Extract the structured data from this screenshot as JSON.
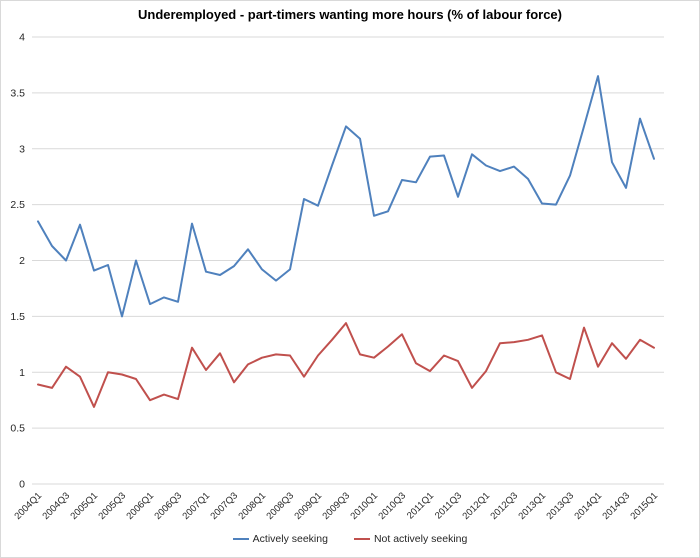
{
  "title": "Underemployed - part-timers wanting more hours (% of labour force)",
  "chart_data": {
    "type": "line",
    "title": "Underemployed - part-timers wanting more hours (% of labour force)",
    "xlabel": "",
    "ylabel": "",
    "ylim": [
      0,
      4
    ],
    "y_tick_step": 0.5,
    "y_tick_labels": [
      "0",
      "0.5",
      "1",
      "1.5",
      "2",
      "2.5",
      "3",
      "3.5",
      "4"
    ],
    "x_tick_label_every": 2,
    "grid": true,
    "gridline_color": "#d9d9d9",
    "axis_text_color": "#262626",
    "legend_position": "bottom",
    "categories": [
      "2004Q1",
      "2004Q2",
      "2004Q3",
      "2004Q4",
      "2005Q1",
      "2005Q2",
      "2005Q3",
      "2005Q4",
      "2006Q1",
      "2006Q2",
      "2006Q3",
      "2006Q4",
      "2007Q1",
      "2007Q2",
      "2007Q3",
      "2007Q4",
      "2008Q1",
      "2008Q2",
      "2008Q3",
      "2008Q4",
      "2009Q1",
      "2009Q2",
      "2009Q3",
      "2009Q4",
      "2010Q1",
      "2010Q2",
      "2010Q3",
      "2010Q4",
      "2011Q1",
      "2011Q2",
      "2011Q3",
      "2011Q4",
      "2012Q1",
      "2012Q2",
      "2012Q3",
      "2012Q4",
      "2013Q1",
      "2013Q2",
      "2013Q3",
      "2013Q4",
      "2014Q1",
      "2014Q2",
      "2014Q3",
      "2014Q4",
      "2015Q1"
    ],
    "series": [
      {
        "name": "Actively seeking",
        "color": "#4F81BD",
        "values": [
          2.35,
          2.13,
          2.0,
          2.32,
          1.91,
          1.96,
          1.5,
          2.0,
          1.61,
          1.67,
          1.63,
          2.33,
          1.9,
          1.87,
          1.95,
          2.1,
          1.92,
          1.82,
          1.92,
          2.55,
          2.49,
          2.85,
          3.2,
          3.09,
          2.4,
          2.44,
          2.72,
          2.7,
          2.93,
          2.94,
          2.57,
          2.95,
          2.85,
          2.8,
          2.84,
          2.73,
          2.51,
          2.5,
          2.76,
          3.2,
          3.65,
          2.88,
          2.65,
          3.27,
          2.91
        ]
      },
      {
        "name": "Not actively seeking",
        "color": "#C0504D",
        "values": [
          0.89,
          0.86,
          1.05,
          0.96,
          0.69,
          1.0,
          0.98,
          0.94,
          0.75,
          0.8,
          0.76,
          1.22,
          1.02,
          1.17,
          0.91,
          1.07,
          1.13,
          1.16,
          1.15,
          0.96,
          1.15,
          1.29,
          1.44,
          1.16,
          1.13,
          1.23,
          1.34,
          1.08,
          1.01,
          1.15,
          1.1,
          0.86,
          1.01,
          1.26,
          1.27,
          1.29,
          1.33,
          1.0,
          0.94,
          1.4,
          1.05,
          1.26,
          1.12,
          1.29,
          1.22
        ]
      }
    ]
  }
}
